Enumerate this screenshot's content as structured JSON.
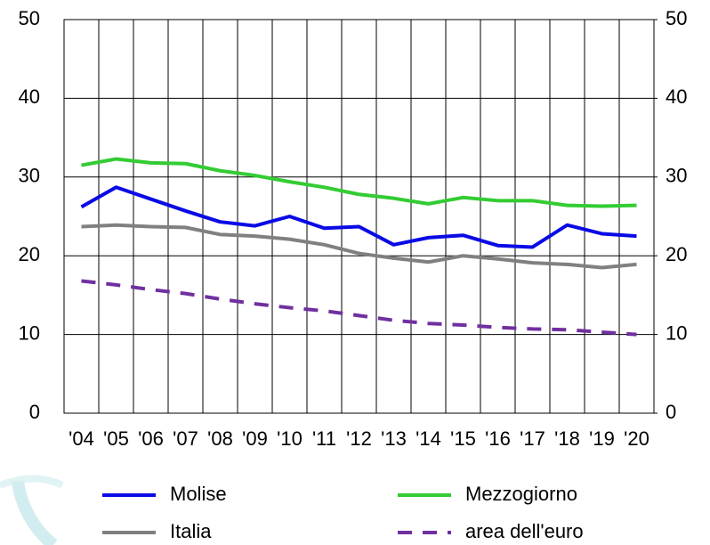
{
  "chart_data": {
    "type": "line",
    "categories": [
      "'04",
      "'05",
      "'06",
      "'07",
      "'08",
      "'09",
      "'10",
      "'11",
      "'12",
      "'13",
      "'14",
      "'15",
      "'16",
      "'17",
      "'18",
      "'19",
      "'20"
    ],
    "series": [
      {
        "name": "Molise",
        "color": "#0a0ae6",
        "values": [
          26.2,
          28.7,
          27.2,
          25.7,
          24.3,
          23.8,
          25.0,
          23.5,
          23.7,
          21.4,
          22.3,
          22.6,
          21.3,
          21.1,
          23.9,
          22.8,
          22.5
        ]
      },
      {
        "name": "Mezzogiorno",
        "color": "#33cc33",
        "values": [
          31.5,
          32.3,
          31.8,
          31.7,
          30.8,
          30.2,
          29.4,
          28.7,
          27.8,
          27.3,
          26.6,
          27.4,
          27.0,
          27.0,
          26.4,
          26.3,
          26.4
        ]
      },
      {
        "name": "Italia",
        "color": "#808080",
        "values": [
          23.7,
          23.9,
          23.7,
          23.6,
          22.7,
          22.5,
          22.1,
          21.4,
          20.3,
          19.7,
          19.2,
          20.0,
          19.6,
          19.1,
          18.9,
          18.5,
          18.9
        ]
      },
      {
        "name": "area dell'euro",
        "color": "#7030a0",
        "dash": true,
        "values": [
          16.8,
          16.3,
          15.7,
          15.2,
          14.5,
          13.9,
          13.4,
          13.0,
          12.4,
          11.8,
          11.4,
          11.2,
          10.9,
          10.7,
          10.6,
          10.3,
          10.0
        ]
      }
    ],
    "ylim": [
      0,
      50
    ],
    "yticks": [
      0,
      10,
      20,
      30,
      40,
      50
    ],
    "y2lim": [
      0,
      50
    ],
    "y2ticks": [
      0,
      10,
      20,
      30,
      40,
      50
    ],
    "grid": true,
    "legend": "bottom"
  }
}
